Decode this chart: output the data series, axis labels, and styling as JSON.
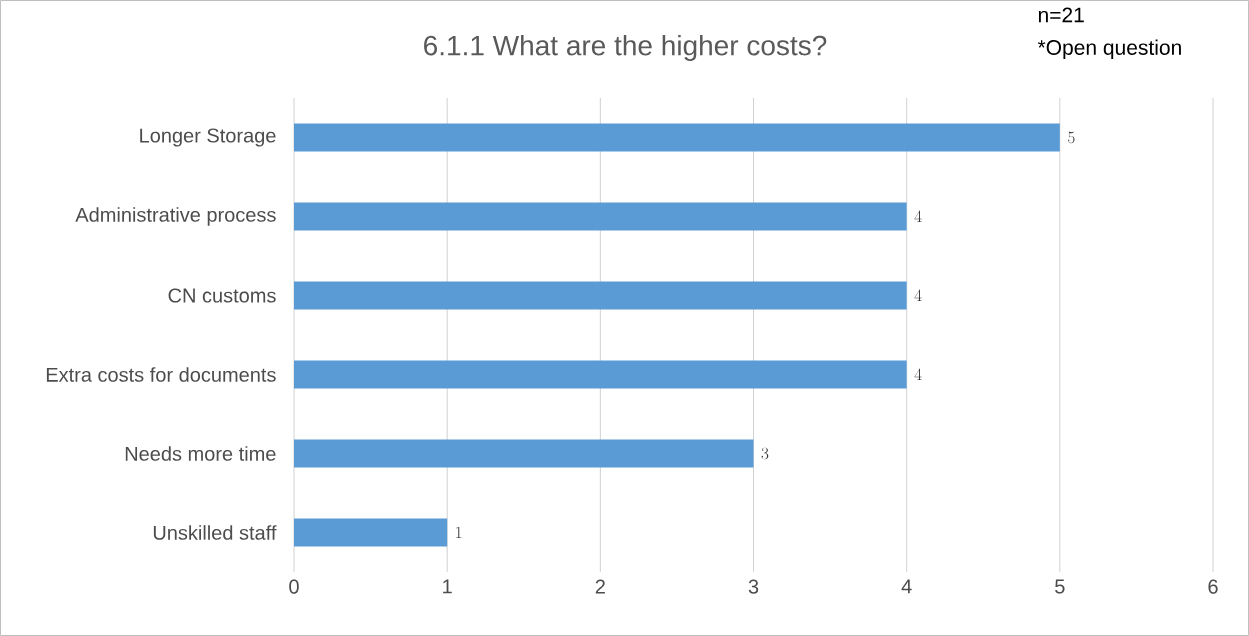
{
  "chart_data": {
    "type": "bar",
    "orientation": "horizontal",
    "title": "6.1.1 What are the higher costs?",
    "annotations": [
      "n=21",
      "*Open question"
    ],
    "categories": [
      "Longer Storage",
      "Administrative process",
      "CN customs",
      "Extra costs for documents",
      "Needs more time",
      "Unskilled staff"
    ],
    "values": [
      5,
      4,
      4,
      4,
      3,
      1
    ],
    "color": "#5b9bd5",
    "xlim": [
      0,
      6
    ],
    "xticks": [
      0,
      1,
      2,
      3,
      4,
      5,
      6
    ],
    "grid": "x",
    "data_labels": true
  }
}
